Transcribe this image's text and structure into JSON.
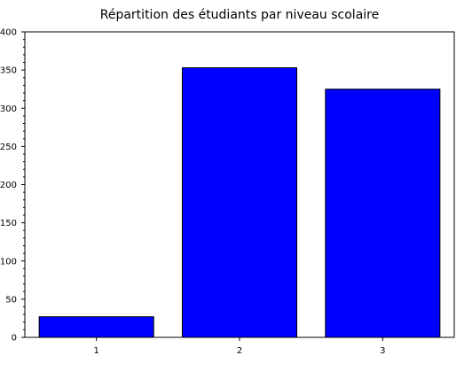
{
  "chart_data": {
    "type": "bar",
    "title": "Répartition des étudiants par niveau scolaire",
    "xlabel": "",
    "ylabel": "",
    "categories": [
      "1",
      "2",
      "3"
    ],
    "values": [
      27,
      353,
      325
    ],
    "ylim": [
      0,
      400
    ],
    "y_ticks": [
      0,
      50,
      100,
      150,
      200,
      250,
      300,
      350,
      400
    ],
    "y_tick_labels": [
      "0",
      "50",
      "100",
      "150",
      "200",
      "250",
      "300",
      "350",
      "400"
    ],
    "grid": false,
    "legend": "none",
    "colors": {
      "bar_fill": "#0000ff",
      "bar_edge": "#000000",
      "axis": "#000000",
      "background": "#ffffff"
    }
  }
}
